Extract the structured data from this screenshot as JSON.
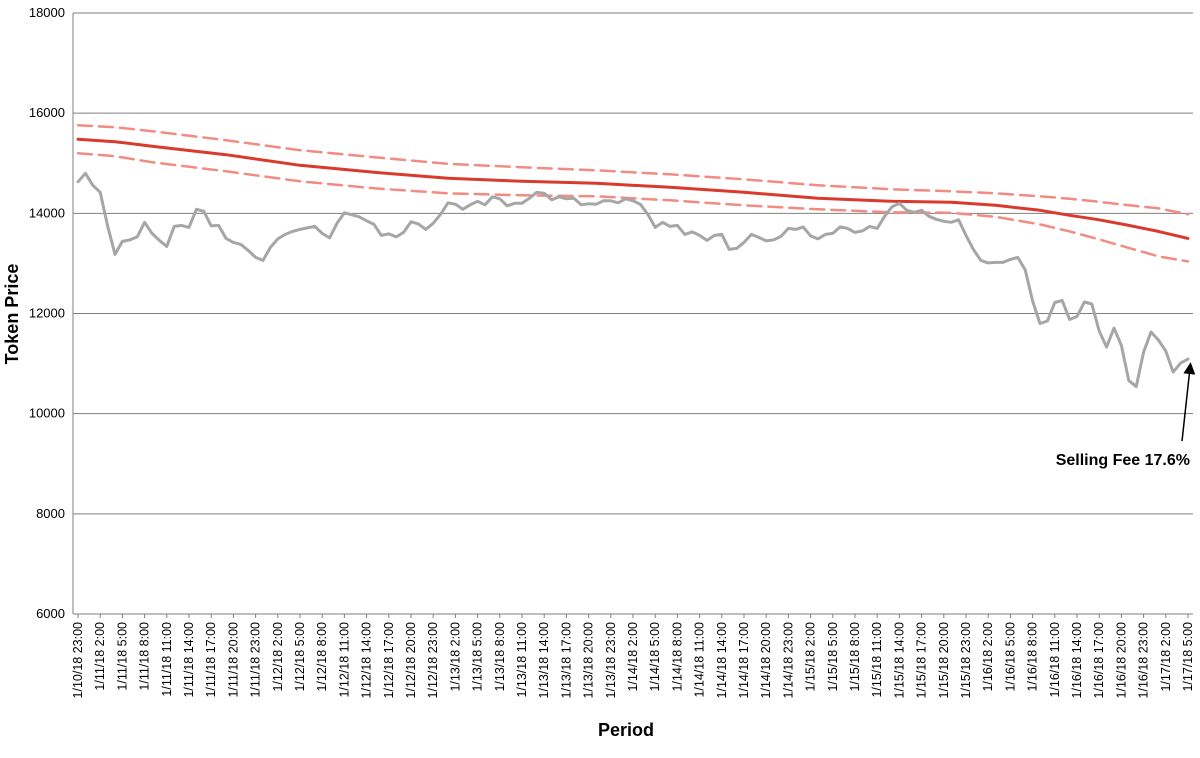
{
  "chart_data": {
    "type": "line",
    "xlabel": "Period",
    "ylabel": "Token Price",
    "ylim": [
      6000,
      18000
    ],
    "yticks": [
      6000,
      8000,
      10000,
      12000,
      14000,
      16000,
      18000
    ],
    "grid": "horizontal",
    "x_start": "1/10/18 23:00",
    "x_step_hours": 1,
    "x_tick_every": 3,
    "x_count": 151,
    "x_tick_labels": [
      "1/10/18 23:00",
      "1/11/18 2:00",
      "1/11/18 5:00",
      "1/11/18 8:00",
      "1/11/18 11:00",
      "1/11/18 14:00",
      "1/11/18 17:00",
      "1/11/18 20:00",
      "1/11/18 23:00",
      "1/12/18 2:00",
      "1/12/18 5:00",
      "1/12/18 8:00",
      "1/12/18 11:00",
      "1/12/18 14:00",
      "1/12/18 17:00",
      "1/12/18 20:00",
      "1/12/18 23:00",
      "1/13/18 2:00",
      "1/13/18 5:00",
      "1/13/18 8:00",
      "1/13/18 11:00",
      "1/13/18 14:00",
      "1/13/18 17:00",
      "1/13/18 20:00",
      "1/13/18 23:00",
      "1/14/18 2:00",
      "1/14/18 5:00",
      "1/14/18 8:00",
      "1/14/18 11:00",
      "1/14/18 14:00",
      "1/14/18 17:00",
      "1/14/18 20:00",
      "1/14/18 23:00",
      "1/15/18 2:00",
      "1/15/18 5:00",
      "1/15/18 8:00",
      "1/15/18 11:00",
      "1/15/18 14:00",
      "1/15/18 17:00",
      "1/15/18 20:00",
      "1/15/18 23:00",
      "1/16/18 2:00",
      "1/16/18 5:00",
      "1/16/18 8:00",
      "1/16/18 11:00",
      "1/16/18 14:00",
      "1/16/18 17:00",
      "1/16/18 20:00",
      "1/16/18 23:00",
      "1/17/18 2:00",
      "1/17/18 5:00"
    ],
    "series": [
      {
        "style": "solid-gray",
        "color": "#a6a6a6",
        "points": [
          [
            0,
            14630
          ],
          [
            1,
            14800
          ],
          [
            2,
            14560
          ],
          [
            3,
            14420
          ],
          [
            4,
            13750
          ],
          [
            5,
            13180
          ],
          [
            6,
            13440
          ],
          [
            7,
            13470
          ],
          [
            8,
            13530
          ],
          [
            9,
            13820
          ],
          [
            10,
            13600
          ],
          [
            11,
            13460
          ],
          [
            12,
            13340
          ],
          [
            13,
            13740
          ],
          [
            14,
            13760
          ],
          [
            15,
            13720
          ],
          [
            16,
            14080
          ],
          [
            17,
            14040
          ],
          [
            18,
            13750
          ],
          [
            19,
            13760
          ],
          [
            20,
            13500
          ],
          [
            21,
            13420
          ],
          [
            22,
            13380
          ],
          [
            23,
            13260
          ],
          [
            24,
            13120
          ],
          [
            25,
            13060
          ],
          [
            26,
            13320
          ],
          [
            27,
            13490
          ],
          [
            28,
            13580
          ],
          [
            29,
            13640
          ],
          [
            30,
            13680
          ],
          [
            31,
            13710
          ],
          [
            32,
            13740
          ],
          [
            33,
            13600
          ],
          [
            34,
            13510
          ],
          [
            35,
            13800
          ],
          [
            36,
            14010
          ],
          [
            37,
            13970
          ],
          [
            38,
            13930
          ],
          [
            39,
            13850
          ],
          [
            40,
            13780
          ],
          [
            41,
            13560
          ],
          [
            42,
            13590
          ],
          [
            43,
            13530
          ],
          [
            44,
            13620
          ],
          [
            45,
            13830
          ],
          [
            46,
            13790
          ],
          [
            47,
            13680
          ],
          [
            48,
            13800
          ],
          [
            49,
            13980
          ],
          [
            50,
            14210
          ],
          [
            51,
            14180
          ],
          [
            52,
            14080
          ],
          [
            53,
            14170
          ],
          [
            54,
            14240
          ],
          [
            55,
            14170
          ],
          [
            56,
            14330
          ],
          [
            57,
            14290
          ],
          [
            58,
            14150
          ],
          [
            59,
            14200
          ],
          [
            60,
            14200
          ],
          [
            61,
            14300
          ],
          [
            62,
            14420
          ],
          [
            63,
            14400
          ],
          [
            64,
            14270
          ],
          [
            65,
            14330
          ],
          [
            66,
            14290
          ],
          [
            67,
            14300
          ],
          [
            68,
            14170
          ],
          [
            69,
            14190
          ],
          [
            70,
            14180
          ],
          [
            71,
            14250
          ],
          [
            72,
            14250
          ],
          [
            73,
            14210
          ],
          [
            74,
            14290
          ],
          [
            75,
            14250
          ],
          [
            76,
            14180
          ],
          [
            77,
            13980
          ],
          [
            78,
            13720
          ],
          [
            79,
            13820
          ],
          [
            80,
            13740
          ],
          [
            81,
            13760
          ],
          [
            82,
            13580
          ],
          [
            83,
            13630
          ],
          [
            84,
            13560
          ],
          [
            85,
            13460
          ],
          [
            86,
            13560
          ],
          [
            87,
            13580
          ],
          [
            88,
            13280
          ],
          [
            89,
            13300
          ],
          [
            90,
            13420
          ],
          [
            91,
            13580
          ],
          [
            92,
            13520
          ],
          [
            93,
            13450
          ],
          [
            94,
            13470
          ],
          [
            95,
            13540
          ],
          [
            96,
            13700
          ],
          [
            97,
            13680
          ],
          [
            98,
            13730
          ],
          [
            99,
            13550
          ],
          [
            100,
            13490
          ],
          [
            101,
            13580
          ],
          [
            102,
            13600
          ],
          [
            103,
            13730
          ],
          [
            104,
            13700
          ],
          [
            105,
            13620
          ],
          [
            106,
            13650
          ],
          [
            107,
            13740
          ],
          [
            108,
            13700
          ],
          [
            109,
            13940
          ],
          [
            110,
            14130
          ],
          [
            111,
            14200
          ],
          [
            112,
            14060
          ],
          [
            113,
            14020
          ],
          [
            114,
            14060
          ],
          [
            115,
            13940
          ],
          [
            116,
            13880
          ],
          [
            117,
            13840
          ],
          [
            118,
            13820
          ],
          [
            119,
            13870
          ],
          [
            120,
            13560
          ],
          [
            121,
            13280
          ],
          [
            122,
            13060
          ],
          [
            123,
            13010
          ],
          [
            124,
            13020
          ],
          [
            125,
            13020
          ],
          [
            126,
            13080
          ],
          [
            127,
            13120
          ],
          [
            128,
            12870
          ],
          [
            129,
            12250
          ],
          [
            130,
            11800
          ],
          [
            131,
            11850
          ],
          [
            132,
            12220
          ],
          [
            133,
            12260
          ],
          [
            134,
            11880
          ],
          [
            135,
            11940
          ],
          [
            136,
            12230
          ],
          [
            137,
            12190
          ],
          [
            138,
            11650
          ],
          [
            139,
            11330
          ],
          [
            140,
            11710
          ],
          [
            141,
            11360
          ],
          [
            142,
            10660
          ],
          [
            143,
            10540
          ],
          [
            144,
            11230
          ],
          [
            145,
            11630
          ],
          [
            146,
            11470
          ],
          [
            147,
            11250
          ],
          [
            148,
            10830
          ],
          [
            149,
            11010
          ],
          [
            150,
            11090
          ]
        ]
      },
      {
        "style": "solid-red",
        "color": "#d93a2b",
        "points": [
          [
            0,
            15480
          ],
          [
            5,
            15430
          ],
          [
            10,
            15340
          ],
          [
            20,
            15170
          ],
          [
            30,
            14960
          ],
          [
            40,
            14820
          ],
          [
            50,
            14700
          ],
          [
            60,
            14640
          ],
          [
            70,
            14600
          ],
          [
            80,
            14520
          ],
          [
            90,
            14420
          ],
          [
            100,
            14300
          ],
          [
            110,
            14240
          ],
          [
            118,
            14220
          ],
          [
            124,
            14160
          ],
          [
            130,
            14060
          ],
          [
            134,
            13960
          ],
          [
            138,
            13870
          ],
          [
            142,
            13760
          ],
          [
            146,
            13640
          ],
          [
            150,
            13500
          ]
        ]
      },
      {
        "style": "dashed-pink-upper",
        "color": "#f28b82",
        "points": [
          [
            0,
            15760
          ],
          [
            5,
            15720
          ],
          [
            10,
            15640
          ],
          [
            20,
            15460
          ],
          [
            30,
            15260
          ],
          [
            40,
            15120
          ],
          [
            50,
            14990
          ],
          [
            60,
            14920
          ],
          [
            70,
            14860
          ],
          [
            80,
            14780
          ],
          [
            90,
            14680
          ],
          [
            100,
            14560
          ],
          [
            110,
            14480
          ],
          [
            118,
            14440
          ],
          [
            124,
            14400
          ],
          [
            130,
            14340
          ],
          [
            134,
            14290
          ],
          [
            138,
            14230
          ],
          [
            142,
            14160
          ],
          [
            146,
            14100
          ],
          [
            150,
            13980
          ]
        ]
      },
      {
        "style": "dashed-pink-lower",
        "color": "#f28b82",
        "points": [
          [
            0,
            15200
          ],
          [
            5,
            15140
          ],
          [
            10,
            15020
          ],
          [
            20,
            14840
          ],
          [
            30,
            14640
          ],
          [
            40,
            14500
          ],
          [
            50,
            14400
          ],
          [
            60,
            14360
          ],
          [
            70,
            14340
          ],
          [
            80,
            14260
          ],
          [
            90,
            14160
          ],
          [
            100,
            14080
          ],
          [
            110,
            14020
          ],
          [
            118,
            14010
          ],
          [
            124,
            13930
          ],
          [
            130,
            13780
          ],
          [
            134,
            13640
          ],
          [
            138,
            13480
          ],
          [
            142,
            13310
          ],
          [
            146,
            13140
          ],
          [
            150,
            13040
          ]
        ]
      }
    ],
    "annotations": [
      {
        "text": "Selling Fee 17.6%",
        "x": 150,
        "y": 11090
      }
    ]
  }
}
